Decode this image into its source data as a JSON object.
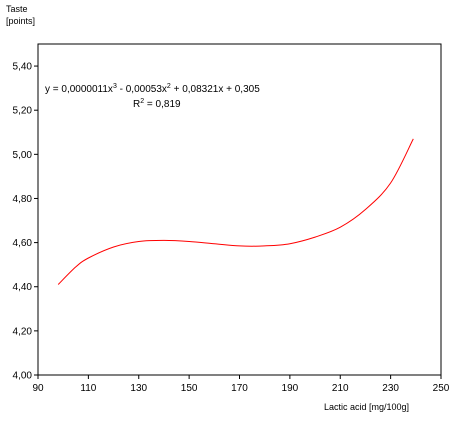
{
  "chart_data": {
    "type": "line",
    "ylabel_line1": "Taste",
    "ylabel_line2": "[points]",
    "xlabel": "Lactic acid [mg/100g]",
    "xlim": [
      90,
      250
    ],
    "ylim": [
      4.0,
      5.5
    ],
    "x_ticks": [
      "90",
      "110",
      "130",
      "150",
      "170",
      "190",
      "210",
      "230",
      "250"
    ],
    "y_ticks": [
      "4,00",
      "4,20",
      "4,40",
      "4,60",
      "4,80",
      "5,00",
      "5,20",
      "5,40"
    ],
    "grid": false,
    "equation": {
      "prefix": "y = 0,0000011x",
      "sup1": "3",
      "mid": " - 0,00053x",
      "sup2": "2",
      "suffix": " + 0,08321x + 0,305"
    },
    "r2": {
      "prefix": "R",
      "sup": "2",
      "suffix": " = 0,819"
    },
    "series": [
      {
        "color": "#ff0000",
        "x": [
          98,
          105,
          110,
          120,
          130,
          140,
          150,
          160,
          170,
          180,
          190,
          200,
          210,
          220,
          230,
          239
        ],
        "y": [
          4.41,
          4.49,
          4.53,
          4.58,
          4.605,
          4.61,
          4.605,
          4.595,
          4.585,
          4.585,
          4.595,
          4.625,
          4.67,
          4.75,
          4.87,
          5.07
        ]
      }
    ]
  }
}
